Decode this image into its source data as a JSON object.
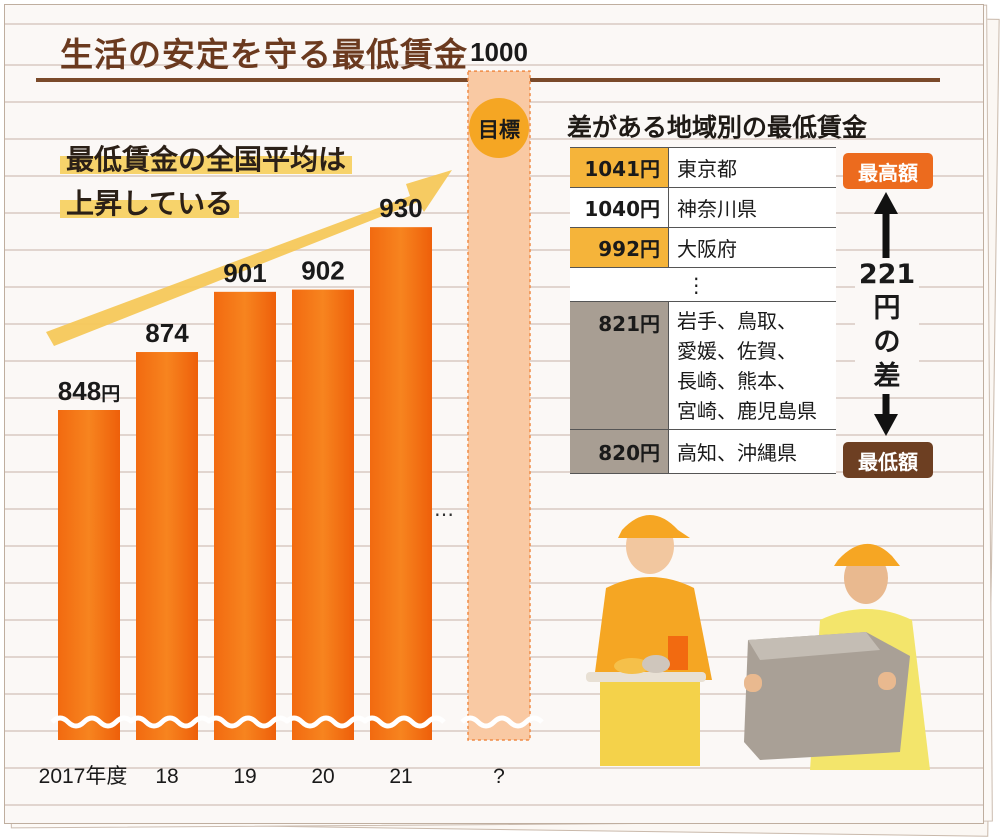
{
  "title": "生活の安定を守る最低賃金",
  "headline": {
    "line1": "最低賃金の全国平均は",
    "line2": "上昇している"
  },
  "chart_data": {
    "type": "bar",
    "categories": [
      "2017年度",
      "18",
      "19",
      "20",
      "21",
      "?"
    ],
    "values": [
      848,
      874,
      901,
      902,
      930,
      1000
    ],
    "value_labels": [
      "848",
      "874",
      "901",
      "902",
      "930",
      "1000"
    ],
    "unit_label": "円",
    "target_label": "目標",
    "ellipsis": "…",
    "ylim": [
      700,
      1050
    ],
    "colors": {
      "bar": "#f36a0e",
      "bar_light": "#f5a15a",
      "target_fill": "#f9c9a3",
      "target_border": "#f08a45",
      "target_badge": "#f5a623",
      "arrow": "#f4c24a"
    }
  },
  "regional_table": {
    "title": "差がある地域別の最低賃金",
    "rows": [
      {
        "amount": "1041円",
        "region": "東京都",
        "tier": "hi"
      },
      {
        "amount": "1040円",
        "region": "神奈川県",
        "tier": "mid"
      },
      {
        "amount": "992円",
        "region": "大阪府",
        "tier": "hi"
      },
      {
        "amount": "",
        "region": "⋮",
        "tier": "gap"
      },
      {
        "amount": "821円",
        "region": "岩手、鳥取、\n愛媛、佐賀、\n長崎、熊本、\n宮崎、鹿児島県",
        "tier": "lo"
      },
      {
        "amount": "820円",
        "region": "高知、沖縄県",
        "tier": "lo"
      }
    ],
    "highest_label": "最高額",
    "lowest_label": "最低額",
    "difference": {
      "line1": "221",
      "line2": "円",
      "line3": "の",
      "line4": "差"
    }
  }
}
